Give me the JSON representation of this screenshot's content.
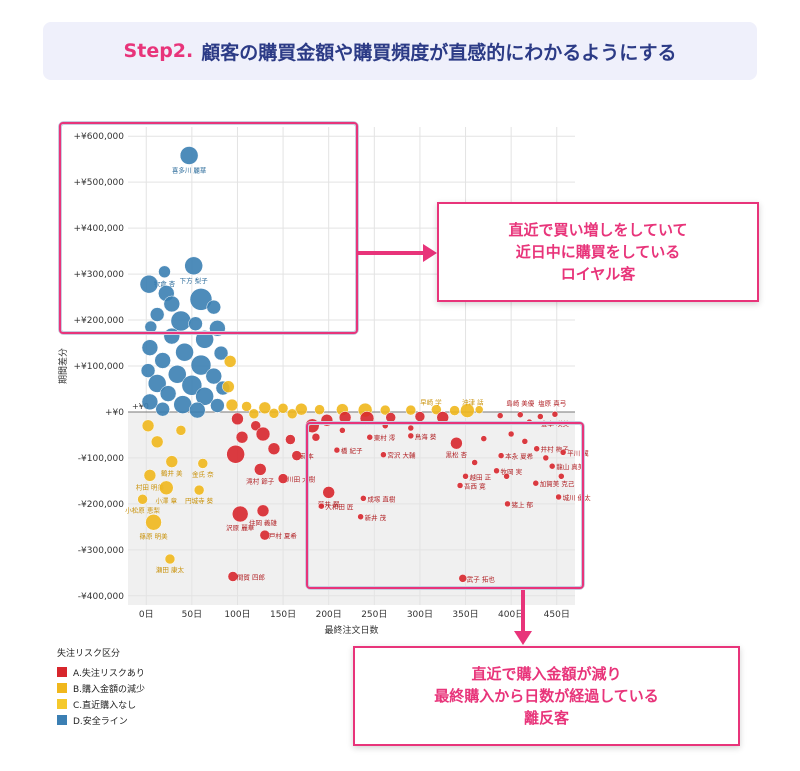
{
  "header": {
    "step": "Step2.",
    "title": "顧客の購買金額や購買頻度が直感的にわかるようにする"
  },
  "callout_top": {
    "lines": [
      "直近で買い増しをしていて",
      "近日中に購買をしている",
      "ロイヤル客"
    ]
  },
  "callout_bottom": {
    "lines": [
      "直近で購入金額が減り",
      "最終購入から日数が経過している",
      "離反客"
    ]
  },
  "legend": {
    "title": "失注リスク区分",
    "items": [
      {
        "label": "A.失注リスクあり",
        "color": "#d7262c"
      },
      {
        "label": "B.購入金額の減少",
        "color": "#f0b71c"
      },
      {
        "label": "C.直近購入なし",
        "color": "#f5c92b"
      },
      {
        "label": "D.安全ライン",
        "color": "#3b7fb3"
      }
    ]
  },
  "colors": {
    "accent": "#e8347a",
    "A": "#d7262c",
    "B": "#f0b71c",
    "D": "#3b7fb3"
  },
  "chart_data": {
    "type": "scatter",
    "xlabel": "最終注文日数",
    "ylabel": "期間差分",
    "xlim": [
      -20,
      470
    ],
    "ylim": [
      -420000,
      620000
    ],
    "x_ticks": [
      0,
      50,
      100,
      150,
      200,
      250,
      300,
      350,
      400,
      450
    ],
    "x_tick_labels": [
      "0日",
      "50日",
      "100日",
      "150日",
      "200日",
      "250日",
      "300日",
      "350日",
      "400日",
      "450日"
    ],
    "y_ticks": [
      600000,
      500000,
      400000,
      300000,
      200000,
      100000,
      0,
      -100000,
      -200000,
      -300000,
      -400000
    ],
    "y_tick_labels": [
      "+¥600,000",
      "+¥500,000",
      "+¥400,000",
      "+¥300,000",
      "+¥200,000",
      "+¥100,000",
      "+¥0",
      "-¥100,000",
      "-¥200,000",
      "-¥300,000",
      "-¥400,000"
    ],
    "zero_line_label": "+¥0",
    "grid": true,
    "legend_position": "bottom-left",
    "points": [
      {
        "x": 47,
        "y": 558000,
        "r": 9,
        "cat": "D",
        "label": "喜多川 麗華"
      },
      {
        "x": 20,
        "y": 305000,
        "r": 6,
        "cat": "D",
        "label": "牧倉 杏"
      },
      {
        "x": 52,
        "y": 318000,
        "r": 9,
        "cat": "D",
        "label": "下方 梨子"
      },
      {
        "x": 3,
        "y": 278000,
        "r": 9,
        "cat": "D"
      },
      {
        "x": 22,
        "y": 258000,
        "r": 8,
        "cat": "D"
      },
      {
        "x": 60,
        "y": 245000,
        "r": 11,
        "cat": "D"
      },
      {
        "x": 28,
        "y": 235000,
        "r": 8,
        "cat": "D"
      },
      {
        "x": 74,
        "y": 228000,
        "r": 7,
        "cat": "D"
      },
      {
        "x": 12,
        "y": 212000,
        "r": 7,
        "cat": "D"
      },
      {
        "x": 38,
        "y": 198000,
        "r": 10,
        "cat": "D"
      },
      {
        "x": 5,
        "y": 185000,
        "r": 6,
        "cat": "D"
      },
      {
        "x": 54,
        "y": 192000,
        "r": 7,
        "cat": "D"
      },
      {
        "x": 78,
        "y": 182000,
        "r": 8,
        "cat": "D"
      },
      {
        "x": 28,
        "y": 165000,
        "r": 8,
        "cat": "D"
      },
      {
        "x": 64,
        "y": 158000,
        "r": 9,
        "cat": "D"
      },
      {
        "x": 4,
        "y": 140000,
        "r": 8,
        "cat": "D"
      },
      {
        "x": 42,
        "y": 130000,
        "r": 9,
        "cat": "D"
      },
      {
        "x": 82,
        "y": 128000,
        "r": 7,
        "cat": "D"
      },
      {
        "x": 18,
        "y": 112000,
        "r": 8,
        "cat": "D"
      },
      {
        "x": 60,
        "y": 102000,
        "r": 10,
        "cat": "D"
      },
      {
        "x": 2,
        "y": 90000,
        "r": 7,
        "cat": "D"
      },
      {
        "x": 34,
        "y": 82000,
        "r": 9,
        "cat": "D"
      },
      {
        "x": 74,
        "y": 78000,
        "r": 8,
        "cat": "D"
      },
      {
        "x": 12,
        "y": 62000,
        "r": 9,
        "cat": "D"
      },
      {
        "x": 50,
        "y": 58000,
        "r": 10,
        "cat": "D"
      },
      {
        "x": 84,
        "y": 52000,
        "r": 7,
        "cat": "D"
      },
      {
        "x": 24,
        "y": 40000,
        "r": 8,
        "cat": "D"
      },
      {
        "x": 64,
        "y": 34000,
        "r": 9,
        "cat": "D"
      },
      {
        "x": 4,
        "y": 22000,
        "r": 8,
        "cat": "D"
      },
      {
        "x": 40,
        "y": 16000,
        "r": 9,
        "cat": "D"
      },
      {
        "x": 78,
        "y": 14000,
        "r": 7,
        "cat": "D"
      },
      {
        "x": 18,
        "y": 6000,
        "r": 7,
        "cat": "D"
      },
      {
        "x": 56,
        "y": 4000,
        "r": 8,
        "cat": "D"
      },
      {
        "x": 92,
        "y": 110000,
        "r": 6,
        "cat": "B"
      },
      {
        "x": 90,
        "y": 55000,
        "r": 6,
        "cat": "B"
      },
      {
        "x": 94,
        "y": 15000,
        "r": 6,
        "cat": "B"
      },
      {
        "x": 110,
        "y": 12000,
        "r": 5,
        "cat": "B"
      },
      {
        "x": 130,
        "y": 9000,
        "r": 6,
        "cat": "B"
      },
      {
        "x": 150,
        "y": 8000,
        "r": 5,
        "cat": "B"
      },
      {
        "x": 170,
        "y": 6000,
        "r": 6,
        "cat": "B"
      },
      {
        "x": 190,
        "y": 5000,
        "r": 5,
        "cat": "B"
      },
      {
        "x": 215,
        "y": 5000,
        "r": 6,
        "cat": "B"
      },
      {
        "x": 240,
        "y": 4000,
        "r": 7,
        "cat": "B"
      },
      {
        "x": 262,
        "y": 4000,
        "r": 5,
        "cat": "B"
      },
      {
        "x": 290,
        "y": 4000,
        "r": 5,
        "cat": "B"
      },
      {
        "x": 318,
        "y": 5000,
        "r": 5,
        "cat": "B"
      },
      {
        "x": 338,
        "y": 3000,
        "r": 5,
        "cat": "B"
      },
      {
        "x": 352,
        "y": 3000,
        "r": 7,
        "cat": "B"
      },
      {
        "x": 365,
        "y": 5000,
        "r": 4,
        "cat": "B"
      },
      {
        "x": 118,
        "y": -4000,
        "r": 5,
        "cat": "B"
      },
      {
        "x": 140,
        "y": -3000,
        "r": 5,
        "cat": "B"
      },
      {
        "x": 160,
        "y": -4000,
        "r": 5,
        "cat": "B"
      },
      {
        "x": 2,
        "y": -30000,
        "r": 6,
        "cat": "B"
      },
      {
        "x": 38,
        "y": -40000,
        "r": 5,
        "cat": "B"
      },
      {
        "x": 12,
        "y": -65000,
        "r": 6,
        "cat": "B"
      },
      {
        "x": 28,
        "y": -108000,
        "r": 6,
        "cat": "B",
        "label": "鶴井 美"
      },
      {
        "x": 62,
        "y": -112000,
        "r": 5,
        "cat": "B",
        "label": "金氏 奈"
      },
      {
        "x": 4,
        "y": -138000,
        "r": 6,
        "cat": "B",
        "label": "村田 明美"
      },
      {
        "x": 22,
        "y": -165000,
        "r": 7,
        "cat": "B",
        "label": "小澤 章"
      },
      {
        "x": 58,
        "y": -170000,
        "r": 5,
        "cat": "B",
        "label": "円城寺 葵"
      },
      {
        "x": -4,
        "y": -190000,
        "r": 5,
        "cat": "B",
        "label": "小松原 恵梨"
      },
      {
        "x": 8,
        "y": -240000,
        "r": 8,
        "cat": "B",
        "label": "篠原 明美"
      },
      {
        "x": 26,
        "y": -320000,
        "r": 5,
        "cat": "B",
        "label": "瀬田 康太"
      },
      {
        "x": 100,
        "y": -15000,
        "r": 6,
        "cat": "A"
      },
      {
        "x": 120,
        "y": -30000,
        "r": 5,
        "cat": "A"
      },
      {
        "x": 105,
        "y": -55000,
        "r": 6,
        "cat": "A"
      },
      {
        "x": 128,
        "y": -48000,
        "r": 7,
        "cat": "A"
      },
      {
        "x": 98,
        "y": -92000,
        "r": 9,
        "cat": "A"
      },
      {
        "x": 140,
        "y": -80000,
        "r": 6,
        "cat": "A"
      },
      {
        "x": 158,
        "y": -60000,
        "r": 5,
        "cat": "A"
      },
      {
        "x": 165,
        "y": -95000,
        "r": 5,
        "cat": "A",
        "label": "蒔本"
      },
      {
        "x": 125,
        "y": -125000,
        "r": 6,
        "cat": "A",
        "label": "滝村 節子"
      },
      {
        "x": 150,
        "y": -145000,
        "r": 5,
        "cat": "A",
        "label": "川田 大樹"
      },
      {
        "x": 103,
        "y": -222000,
        "r": 8,
        "cat": "A",
        "label": "沢原 麗華"
      },
      {
        "x": 128,
        "y": -215000,
        "r": 6,
        "cat": "A",
        "label": "住岡 義雄"
      },
      {
        "x": 130,
        "y": -268000,
        "r": 5,
        "cat": "A",
        "label": "戸村 夏希"
      },
      {
        "x": 95,
        "y": -358000,
        "r": 5,
        "cat": "A",
        "label": "間賀 四郎"
      },
      {
        "x": 182,
        "y": -30000,
        "r": 7,
        "cat": "A"
      },
      {
        "x": 198,
        "y": -18000,
        "r": 6,
        "cat": "A"
      },
      {
        "x": 218,
        "y": -12000,
        "r": 6,
        "cat": "A"
      },
      {
        "x": 242,
        "y": -14000,
        "r": 7,
        "cat": "A"
      },
      {
        "x": 268,
        "y": -12000,
        "r": 5,
        "cat": "A"
      },
      {
        "x": 300,
        "y": -10000,
        "r": 5,
        "cat": "A"
      },
      {
        "x": 325,
        "y": -12000,
        "r": 6,
        "cat": "A"
      },
      {
        "x": 388,
        "y": -8000,
        "r": 3,
        "cat": "A"
      },
      {
        "x": 410,
        "y": -6000,
        "r": 3,
        "cat": "A"
      },
      {
        "x": 432,
        "y": -10000,
        "r": 3,
        "cat": "A"
      },
      {
        "x": 448,
        "y": -5000,
        "r": 3,
        "cat": "A"
      },
      {
        "x": 186,
        "y": -55000,
        "r": 4,
        "cat": "A"
      },
      {
        "x": 209,
        "y": -83000,
        "r": 3,
        "cat": "A",
        "label": "橋 紀子"
      },
      {
        "x": 245,
        "y": -55000,
        "r": 3,
        "cat": "A",
        "label": "東村 澪"
      },
      {
        "x": 260,
        "y": -93000,
        "r": 3,
        "cat": "A",
        "label": "宮沢 大輔"
      },
      {
        "x": 290,
        "y": -52000,
        "r": 3,
        "cat": "A",
        "label": "鳥海 葵"
      },
      {
        "x": 340,
        "y": -68000,
        "r": 6,
        "cat": "A",
        "label": "黒松 杏"
      },
      {
        "x": 200,
        "y": -175000,
        "r": 6,
        "cat": "A",
        "label": "藤井 翼"
      },
      {
        "x": 192,
        "y": -205000,
        "r": 3,
        "cat": "A",
        "label": "大和田 匠"
      },
      {
        "x": 238,
        "y": -188000,
        "r": 3,
        "cat": "A",
        "label": "成塚 直樹"
      },
      {
        "x": 235,
        "y": -228000,
        "r": 3,
        "cat": "A",
        "label": "新井 茂"
      },
      {
        "x": 350,
        "y": -140000,
        "r": 3,
        "cat": "A",
        "label": "越田 正"
      },
      {
        "x": 344,
        "y": -160000,
        "r": 3,
        "cat": "A",
        "label": "吾西 寛"
      },
      {
        "x": 389,
        "y": -95000,
        "r": 3,
        "cat": "A",
        "label": "本永 夏希"
      },
      {
        "x": 384,
        "y": -128000,
        "r": 3,
        "cat": "A",
        "label": "牧岡 実"
      },
      {
        "x": 396,
        "y": -200000,
        "r": 3,
        "cat": "A",
        "label": "猪上 郁"
      },
      {
        "x": 428,
        "y": -80000,
        "r": 3,
        "cat": "A",
        "label": "井村 梅子"
      },
      {
        "x": 445,
        "y": -118000,
        "r": 3,
        "cat": "A",
        "label": "龍山 真美"
      },
      {
        "x": 427,
        "y": -155000,
        "r": 3,
        "cat": "A",
        "label": "加賀美 克己"
      },
      {
        "x": 452,
        "y": -185000,
        "r": 3,
        "cat": "A",
        "label": "城川 優太"
      },
      {
        "x": 457,
        "y": -88000,
        "r": 3,
        "cat": "A",
        "label": "平川 翼"
      },
      {
        "x": 347,
        "y": -362000,
        "r": 4,
        "cat": "A",
        "label": "武子 拓也"
      },
      {
        "x": 420,
        "y": -22000,
        "r": 3,
        "cat": "A"
      },
      {
        "x": 400,
        "y": -48000,
        "r": 3,
        "cat": "A"
      },
      {
        "x": 415,
        "y": -64000,
        "r": 3,
        "cat": "A"
      },
      {
        "x": 370,
        "y": -58000,
        "r": 3,
        "cat": "A"
      },
      {
        "x": 395,
        "y": -140000,
        "r": 3,
        "cat": "A"
      },
      {
        "x": 438,
        "y": -100000,
        "r": 3,
        "cat": "A"
      },
      {
        "x": 455,
        "y": -140000,
        "r": 3,
        "cat": "A"
      },
      {
        "x": 360,
        "y": -110000,
        "r": 3,
        "cat": "A"
      },
      {
        "x": 262,
        "y": -30000,
        "r": 3,
        "cat": "A"
      },
      {
        "x": 215,
        "y": -40000,
        "r": 3,
        "cat": "A"
      },
      {
        "x": 290,
        "y": -35000,
        "r": 3,
        "cat": "A"
      }
    ],
    "top_labels": [
      {
        "x": 312,
        "y": 16000,
        "text": "早崎 学",
        "cat": "B"
      },
      {
        "x": 358,
        "y": 16000,
        "text": "沖津 話",
        "cat": "B"
      },
      {
        "x": 410,
        "y": 14000,
        "text": "島崎 美優",
        "cat": "A"
      },
      {
        "x": 445,
        "y": 14000,
        "text": "塩原 真弓",
        "cat": "A"
      },
      {
        "x": 448,
        "y": -30000,
        "text": "豊本 咲美",
        "cat": "A"
      }
    ]
  }
}
